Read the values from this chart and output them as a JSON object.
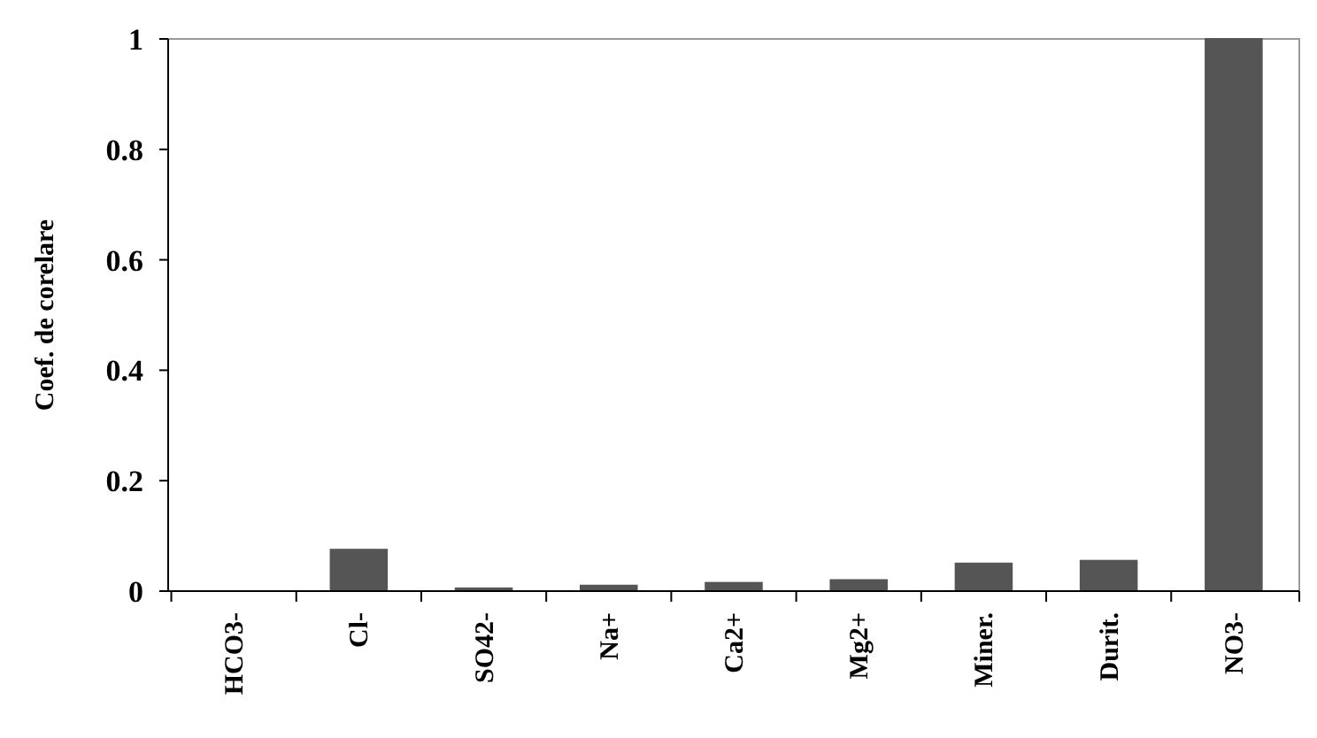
{
  "chart_data": {
    "type": "bar",
    "ylabel": "Coef. de corelare",
    "categories": [
      "HCO3-",
      "Cl-",
      "SO42-",
      "Na+",
      "Ca2+",
      "Mg2+",
      "Miner.",
      "Durit.",
      "NO3-"
    ],
    "values": [
      0,
      0.075,
      0.005,
      0.01,
      0.015,
      0.02,
      0.05,
      0.055,
      1
    ],
    "color": "#555555",
    "ylim": [
      0,
      1
    ],
    "yticks": [
      0,
      0.2,
      0.4,
      0.6,
      0.8,
      1
    ],
    "grid": false
  }
}
